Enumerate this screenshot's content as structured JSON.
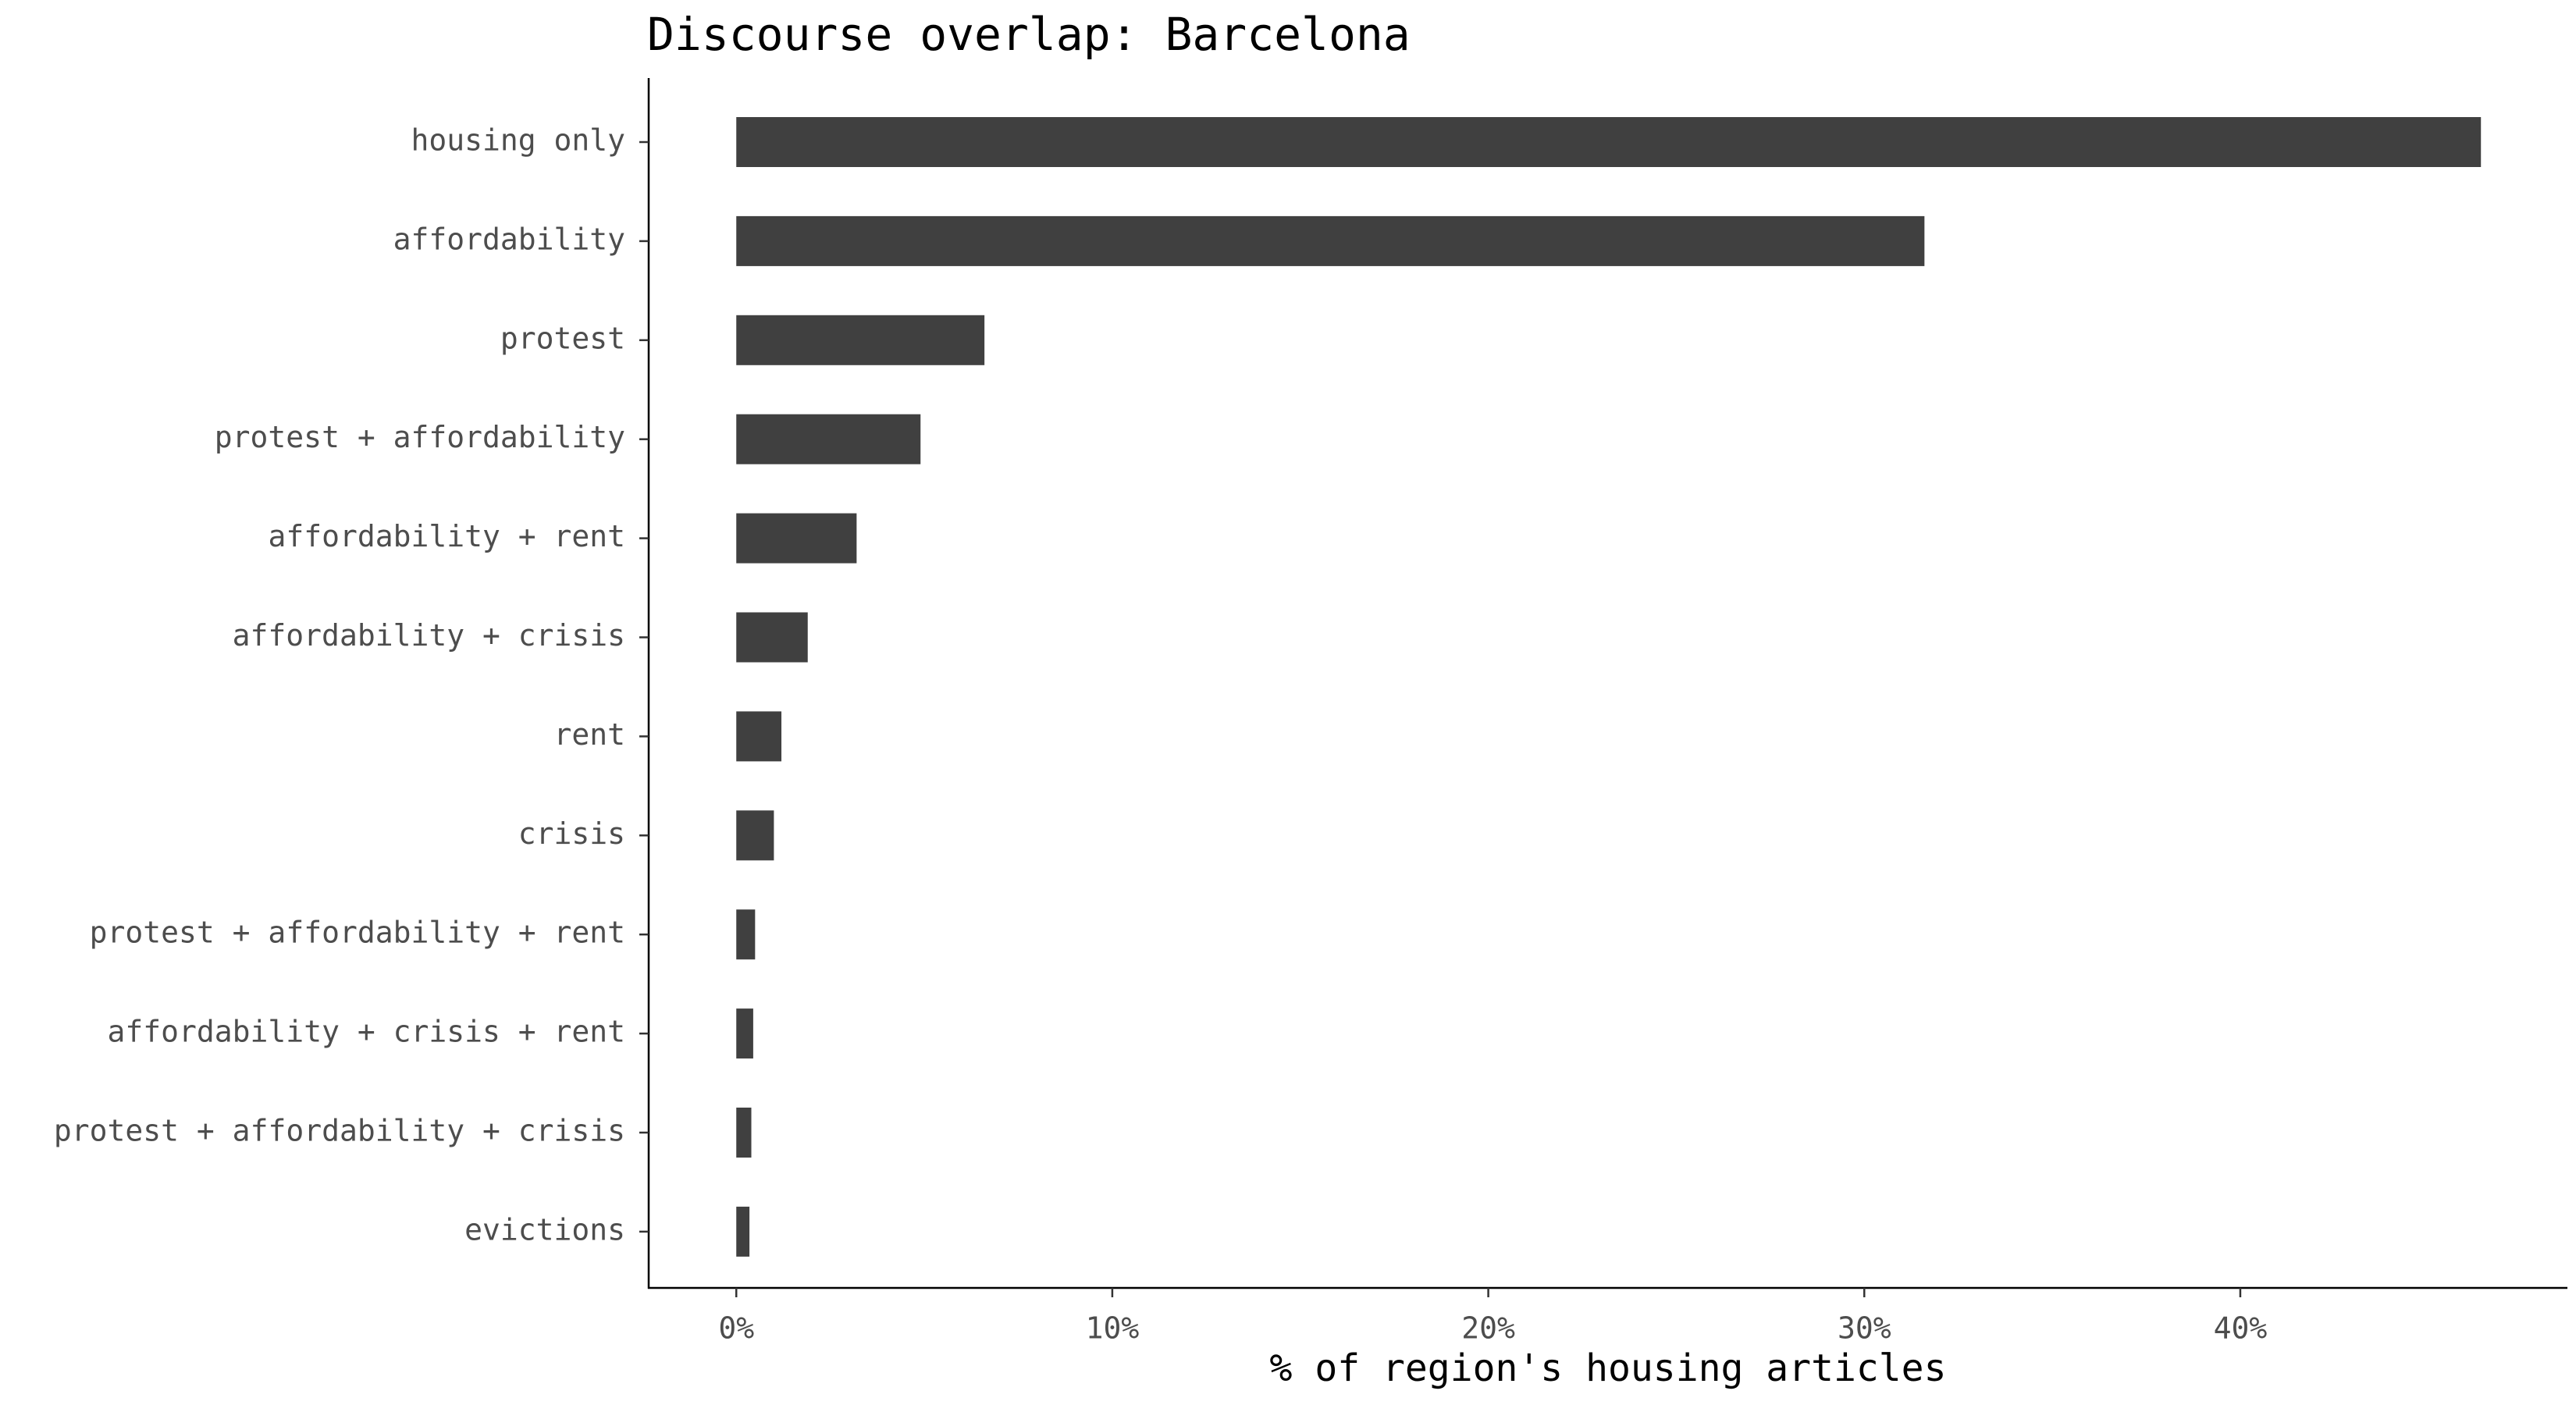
{
  "chart_data": {
    "type": "barh",
    "title": "Discourse overlap:  Barcelona",
    "xlabel": "% of region's housing articles",
    "categories": [
      "housing only",
      "affordability",
      "protest",
      "protest + affordability",
      "affordability + rent",
      "affordability + crisis",
      "rent",
      "crisis",
      "protest + affordability + rent",
      "affordability + crisis + rent",
      "protest + affordability + crisis",
      "evictions"
    ],
    "values": [
      46.4,
      31.6,
      6.6,
      4.9,
      3.2,
      1.9,
      1.2,
      1.0,
      0.5,
      0.45,
      0.4,
      0.35
    ],
    "color": "#404040",
    "xlim": [
      -2.33,
      48.7
    ],
    "xticks": [
      {
        "value": 0,
        "label": "0%"
      },
      {
        "value": 10,
        "label": "10%"
      },
      {
        "value": 20,
        "label": "20%"
      },
      {
        "value": 30,
        "label": "30%"
      },
      {
        "value": 40,
        "label": "40%"
      }
    ],
    "grid": false
  }
}
